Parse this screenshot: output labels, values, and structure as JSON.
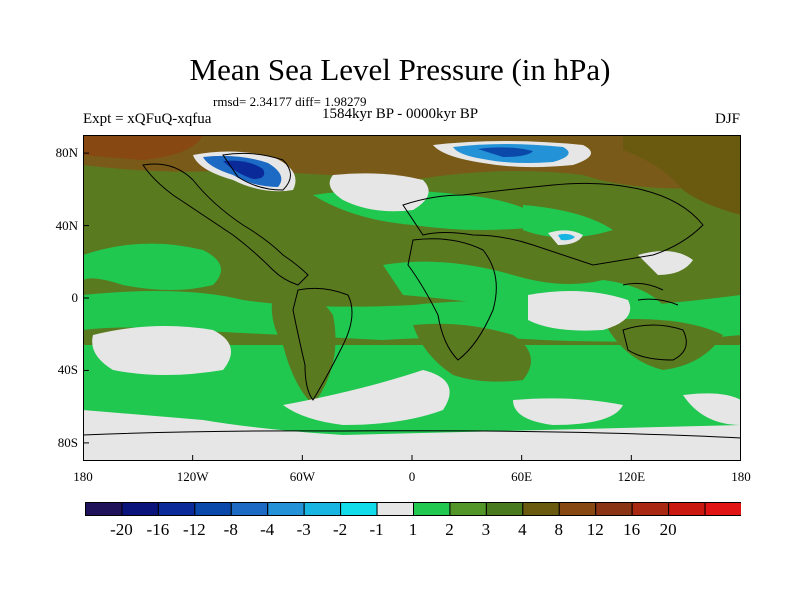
{
  "title": "Mean Sea Level Pressure (in hPa)",
  "stats": "rmsd= 2.34177 diff= 1.98279",
  "subtitle": "1584kyr BP - 0000kyr BP",
  "experiment": "Expt = xQFuQ-xqfua",
  "season": "DJF",
  "axes": {
    "y_ticks": [
      {
        "label": "80N",
        "lat": 80
      },
      {
        "label": "40N",
        "lat": 40
      },
      {
        "label": "0",
        "lat": 0
      },
      {
        "label": "40S",
        "lat": -40
      },
      {
        "label": "80S",
        "lat": -80
      }
    ],
    "x_ticks": [
      {
        "label": "180",
        "lon": -180
      },
      {
        "label": "120W",
        "lon": -120
      },
      {
        "label": "60W",
        "lon": -60
      },
      {
        "label": "0",
        "lon": 0
      },
      {
        "label": "60E",
        "lon": 60
      },
      {
        "label": "120E",
        "lon": 120
      },
      {
        "label": "180",
        "lon": 180
      }
    ],
    "lon_range": [
      -180,
      180
    ],
    "lat_range": [
      -90,
      90
    ]
  },
  "colorbar": {
    "colors": [
      "#20125a",
      "#0a147a",
      "#0a2a9a",
      "#0a48aa",
      "#1c6ac4",
      "#2492d6",
      "#18b4e2",
      "#12dcea",
      "#e6e6e6",
      "#20c850",
      "#52962a",
      "#4a7a1e",
      "#6a5a10",
      "#884812",
      "#8a3414",
      "#a82812",
      "#c81810",
      "#e01414"
    ],
    "labels": [
      "-20",
      "-16",
      "-12",
      "-8",
      "-4",
      "-3",
      "-2",
      "-1",
      "1",
      "2",
      "3",
      "4",
      "8",
      "12",
      "16",
      "20"
    ]
  }
}
